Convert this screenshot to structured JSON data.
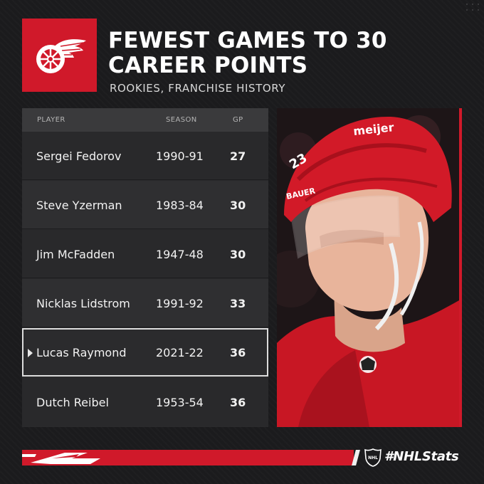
{
  "header": {
    "title_line1": "FEWEST GAMES TO 30",
    "title_line2": "CAREER POINTS",
    "subtitle": "ROOKIES, FRANCHISE HISTORY"
  },
  "logo": {
    "icon": "winged-wheel-logo",
    "color": "#d0192a"
  },
  "table": {
    "headers": {
      "player": "PLAYER",
      "season": "SEASON",
      "gp": "GP"
    },
    "rows": [
      {
        "player": "Sergei Fedorov",
        "season": "1990-91",
        "gp": "27"
      },
      {
        "player": "Steve Yzerman",
        "season": "1983-84",
        "gp": "30"
      },
      {
        "player": "Jim McFadden",
        "season": "1947-48",
        "gp": "30"
      },
      {
        "player": "Nicklas Lidstrom",
        "season": "1991-92",
        "gp": "33"
      },
      {
        "player": "Lucas Raymond",
        "season": "2021-22",
        "gp": "36",
        "highlighted": true
      },
      {
        "player": "Dutch Reibel",
        "season": "1953-54",
        "gp": "36"
      }
    ]
  },
  "photo": {
    "helmet_brand": "BAUER",
    "helmet_sponsor": "meijer",
    "jersey_number": "23"
  },
  "footer": {
    "hashtag": "#NHLStats",
    "league_icon": "nhl-shield-icon"
  },
  "colors": {
    "accent": "#d0192a",
    "background": "#1b1b1d"
  }
}
